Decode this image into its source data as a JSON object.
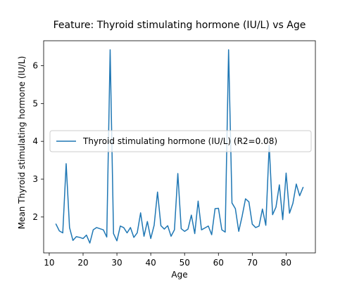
{
  "chart_data": {
    "type": "line",
    "title": "Feature: Thyroid stimulating hormone (IU/L) vs Age",
    "xlabel": "Age",
    "ylabel": "Mean Thyroid stimulating hormone (IU/L)",
    "xlim": [
      8.35,
      88.65
    ],
    "ylim": [
      1.05,
      6.66
    ],
    "xticks": [
      10,
      20,
      30,
      40,
      50,
      60,
      70,
      80
    ],
    "yticks": [
      2,
      3,
      4,
      5,
      6
    ],
    "grid": false,
    "legend_position": "center-left",
    "series": [
      {
        "name": "Thyroid stimulating hormone (IU/L) (R2=0.08)",
        "color": "#1f77b4",
        "x": [
          12,
          13,
          14,
          15,
          16,
          17,
          18,
          19,
          20,
          21,
          22,
          23,
          24,
          25,
          26,
          27,
          28,
          29,
          30,
          31,
          32,
          33,
          34,
          35,
          36,
          37,
          38,
          39,
          40,
          41,
          42,
          43,
          44,
          45,
          46,
          47,
          48,
          49,
          50,
          51,
          52,
          53,
          54,
          55,
          56,
          57,
          58,
          59,
          60,
          61,
          62,
          63,
          64,
          65,
          66,
          67,
          68,
          69,
          70,
          71,
          72,
          73,
          74,
          75,
          76,
          77,
          78,
          79,
          80,
          81,
          82,
          83,
          84,
          85
        ],
        "y": [
          1.81,
          1.63,
          1.58,
          3.41,
          1.72,
          1.38,
          1.48,
          1.46,
          1.43,
          1.52,
          1.31,
          1.66,
          1.72,
          1.69,
          1.66,
          1.47,
          6.42,
          1.56,
          1.37,
          1.76,
          1.72,
          1.58,
          1.72,
          1.46,
          1.58,
          2.11,
          1.49,
          1.88,
          1.43,
          1.78,
          2.66,
          1.77,
          1.68,
          1.77,
          1.49,
          1.66,
          3.15,
          1.69,
          1.62,
          1.68,
          2.05,
          1.56,
          2.42,
          1.66,
          1.71,
          1.76,
          1.53,
          2.22,
          2.23,
          1.66,
          1.6,
          6.42,
          2.37,
          2.22,
          1.62,
          2.02,
          2.48,
          2.4,
          1.81,
          1.72,
          1.76,
          2.21,
          1.78,
          3.9,
          2.06,
          2.26,
          2.85,
          1.93,
          3.16,
          2.1,
          2.36,
          2.87,
          2.56,
          2.78
        ]
      }
    ]
  }
}
